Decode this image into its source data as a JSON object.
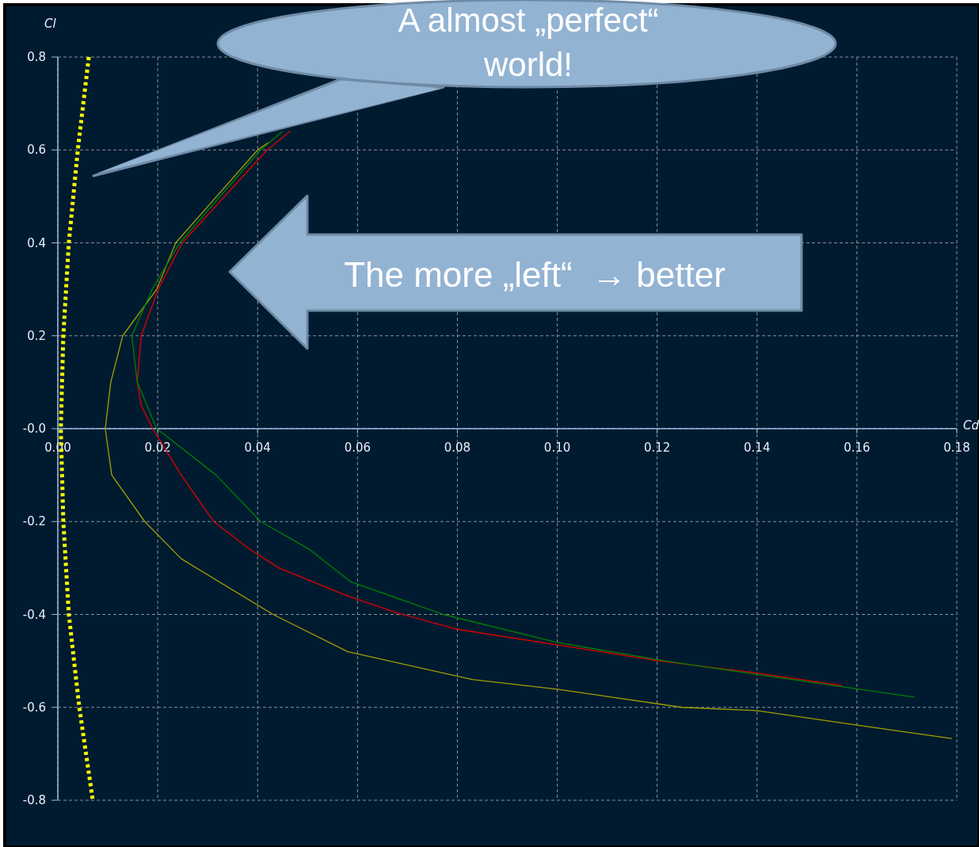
{
  "chart_data": {
    "type": "line",
    "xlabel": "Cd",
    "ylabel": "Cl",
    "xlim": [
      0,
      0.18
    ],
    "ylim": [
      -0.8,
      0.8
    ],
    "xticks": [
      {
        "value": 0,
        "label": "0.00"
      },
      {
        "value": 0.02,
        "label": "0.02"
      },
      {
        "value": 0.04,
        "label": "0.04"
      },
      {
        "value": 0.06,
        "label": "0.06"
      },
      {
        "value": 0.08,
        "label": "0.08"
      },
      {
        "value": 0.1,
        "label": "0.10"
      },
      {
        "value": 0.12,
        "label": "0.12"
      },
      {
        "value": 0.14,
        "label": "0.14"
      },
      {
        "value": 0.16,
        "label": "0.16"
      },
      {
        "value": 0.18,
        "label": "0.18"
      }
    ],
    "yticks": [
      0.8,
      0.6,
      0.4,
      0.2,
      {
        "value": 0,
        "label": "-0.0"
      },
      -0.2,
      -0.4,
      -0.6,
      -0.8
    ],
    "grid": true,
    "marker": "none",
    "series": [
      {
        "color": "#a0a000",
        "line_style": "solid",
        "x": [
          0.0422,
          0.04,
          0.0236,
          0.0198,
          0.013,
          0.0106,
          0.0095,
          0.0108,
          0.0174,
          0.0247,
          0.0431,
          0.058,
          0.083,
          0.1,
          0.125,
          0.14,
          0.16,
          0.179
        ],
        "values": [
          0.616,
          0.6,
          0.4,
          0.3,
          0.2,
          0.1,
          0,
          -0.1,
          -0.2,
          -0.28,
          -0.4,
          -0.48,
          -0.54,
          -0.561,
          -0.6,
          -0.607,
          -0.638,
          -0.667
        ]
      },
      {
        "color": "#e00000",
        "line_style": "solid",
        "x": [
          0.0465,
          0.0419,
          0.0249,
          0.0201,
          0.0167,
          0.0159,
          0.0167,
          0.019,
          0.0247,
          0.0312,
          0.0385,
          0.0443,
          0.058,
          0.0677,
          0.08,
          0.1204,
          0.1405,
          0.157
        ],
        "values": [
          0.64,
          0.6,
          0.4,
          0.3,
          0.2,
          0.1,
          0.05,
          0,
          -0.1,
          -0.2,
          -0.26,
          -0.3,
          -0.36,
          -0.396,
          -0.432,
          -0.5,
          -0.527,
          -0.553
        ]
      },
      {
        "color": "#008000",
        "line_style": "solid",
        "x": [
          0.045,
          0.0406,
          0.0244,
          0.0189,
          0.0148,
          0.0159,
          0.0198,
          0.0317,
          0.0406,
          0.0504,
          0.0587,
          0.0772,
          0.0998,
          0.1215,
          0.1405,
          0.1715
        ],
        "values": [
          0.64,
          0.6,
          0.4,
          0.3,
          0.2,
          0.1,
          0,
          -0.1,
          -0.2,
          -0.26,
          -0.33,
          -0.4,
          -0.46,
          -0.5,
          -0.53,
          -0.578
        ]
      },
      {
        "color": "#ffff00",
        "line_style": "dotted",
        "x": [
          0.0062,
          0.004,
          0.0022,
          0.0011,
          0.0006,
          0.0011,
          0.0022,
          0.0043,
          0.007
        ],
        "values": [
          0.8,
          0.6,
          0.4,
          0.2,
          0,
          -0.2,
          -0.4,
          -0.6,
          -0.8
        ]
      }
    ],
    "annotations": [
      "A almost „perfect“ world!",
      "The more „left“  → better"
    ]
  }
}
